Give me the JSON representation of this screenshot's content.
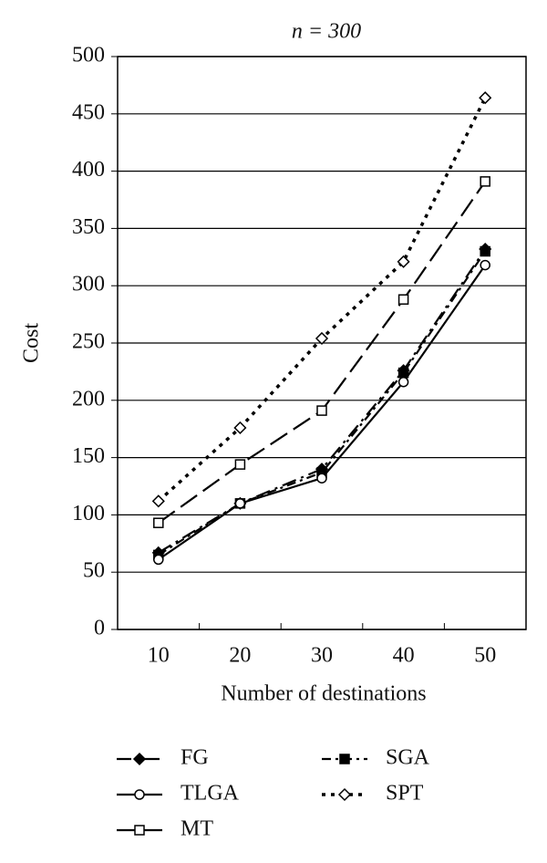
{
  "chart_data": {
    "type": "line",
    "title": "n = 300",
    "x_label": "Number of destinations",
    "y_label": "Cost",
    "categories": [
      10,
      20,
      30,
      40,
      50
    ],
    "ylim": [
      0,
      500
    ],
    "yticks": [
      0,
      50,
      100,
      150,
      200,
      250,
      300,
      350,
      400,
      450,
      500
    ],
    "grid": true,
    "legend": "bottom",
    "series": [
      {
        "name": "FG",
        "color": "#000000",
        "dash": "16 6 3 6",
        "marker": "diamond-filled",
        "values": [
          67,
          110,
          140,
          226,
          332
        ]
      },
      {
        "name": "SGA",
        "color": "#000000",
        "dash": "10 5 3 5",
        "marker": "square-filled",
        "values": [
          65,
          110,
          137,
          224,
          330
        ]
      },
      {
        "name": "TLGA",
        "color": "#000000",
        "dash": "none",
        "marker": "circle-open",
        "values": [
          61,
          110,
          132,
          216,
          318
        ]
      },
      {
        "name": "SPT",
        "color": "#000000",
        "dash": "4 6",
        "marker": "diamond-open",
        "values": [
          112,
          176,
          254,
          321,
          464
        ]
      },
      {
        "name": "MT",
        "color": "#000000",
        "dash": "22 8",
        "marker": "square-open",
        "values": [
          93,
          144,
          191,
          288,
          391
        ]
      }
    ]
  }
}
